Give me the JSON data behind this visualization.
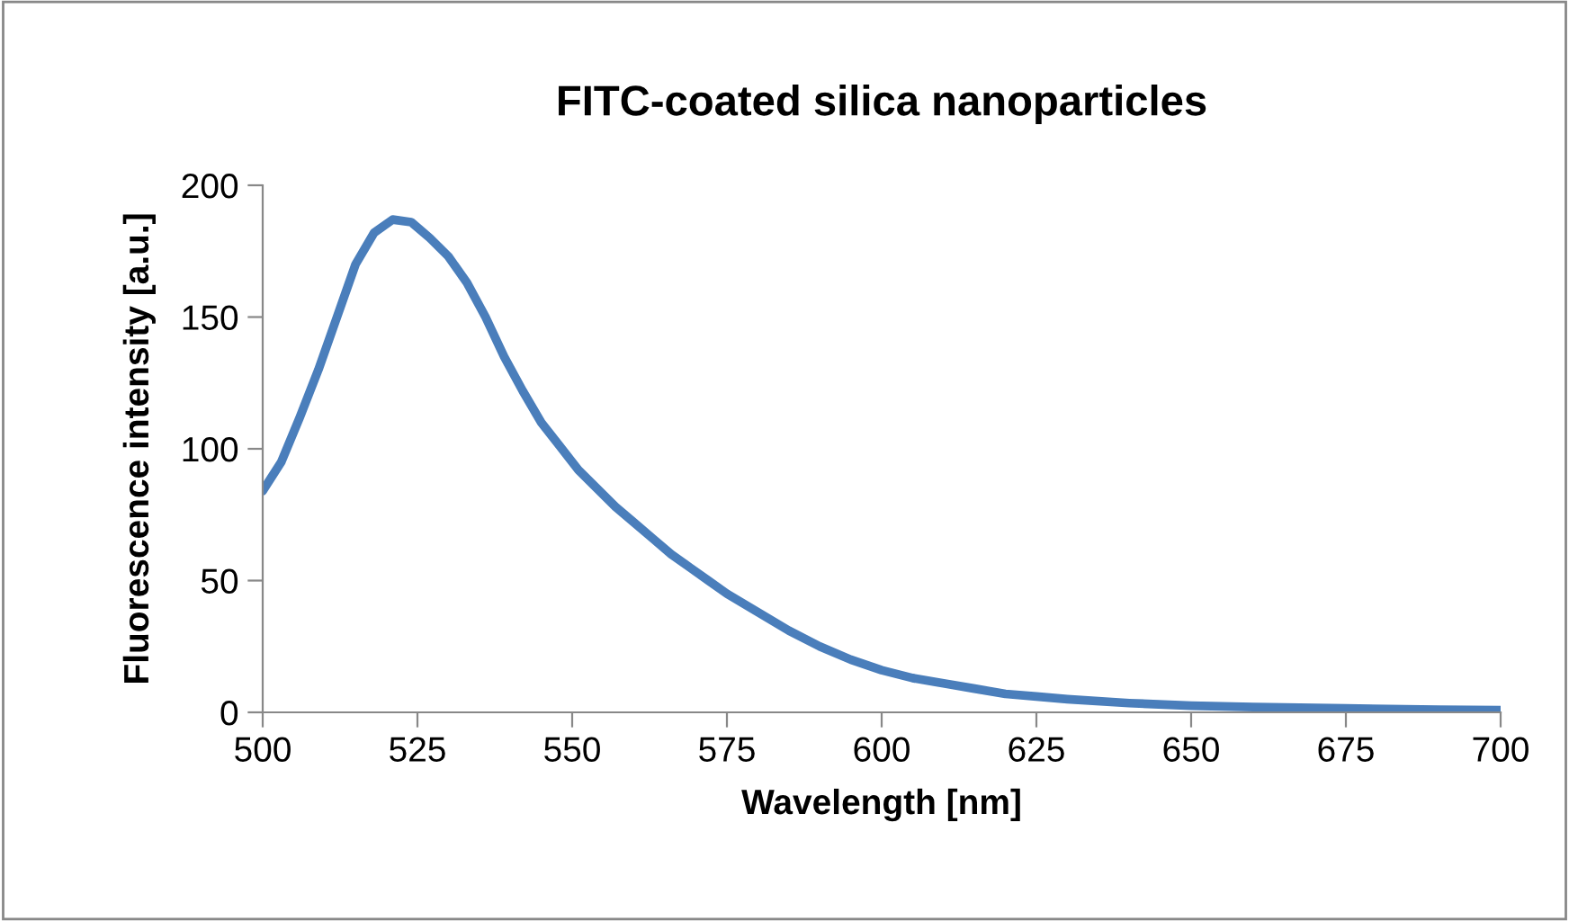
{
  "chart_data": {
    "type": "line",
    "title": "FITC-coated silica nanoparticles",
    "xlabel": "Wavelength [nm]",
    "ylabel": "Fluorescence intensity [a.u.]",
    "x": [
      500,
      503,
      506,
      509,
      512,
      515,
      518,
      521,
      524,
      527,
      530,
      533,
      536,
      539,
      542,
      545,
      548,
      551,
      554,
      557,
      560,
      563,
      566,
      569,
      572,
      575,
      580,
      585,
      590,
      595,
      600,
      605,
      610,
      615,
      620,
      625,
      630,
      640,
      650,
      660,
      675,
      690,
      700
    ],
    "series": [
      {
        "color": "#4a7ebb",
        "values": [
          84,
          95,
          112,
          130,
          150,
          170,
          182,
          187,
          186,
          180,
          173,
          163,
          150,
          135,
          122,
          110,
          101,
          92,
          85,
          78,
          72,
          66,
          60,
          55,
          50,
          45,
          38,
          31,
          25,
          20,
          16,
          13,
          11,
          9,
          7,
          6,
          5,
          3.5,
          2.5,
          2,
          1.5,
          1,
          0.8
        ]
      }
    ],
    "xlim": [
      500,
      700
    ],
    "xticks": [
      500,
      525,
      550,
      575,
      600,
      625,
      650,
      675,
      700
    ],
    "ylim": [
      0,
      200
    ],
    "yticks": [
      0,
      50,
      100,
      150,
      200
    ],
    "grid": false,
    "legend": false,
    "marker": "none",
    "line_style": "solid"
  }
}
